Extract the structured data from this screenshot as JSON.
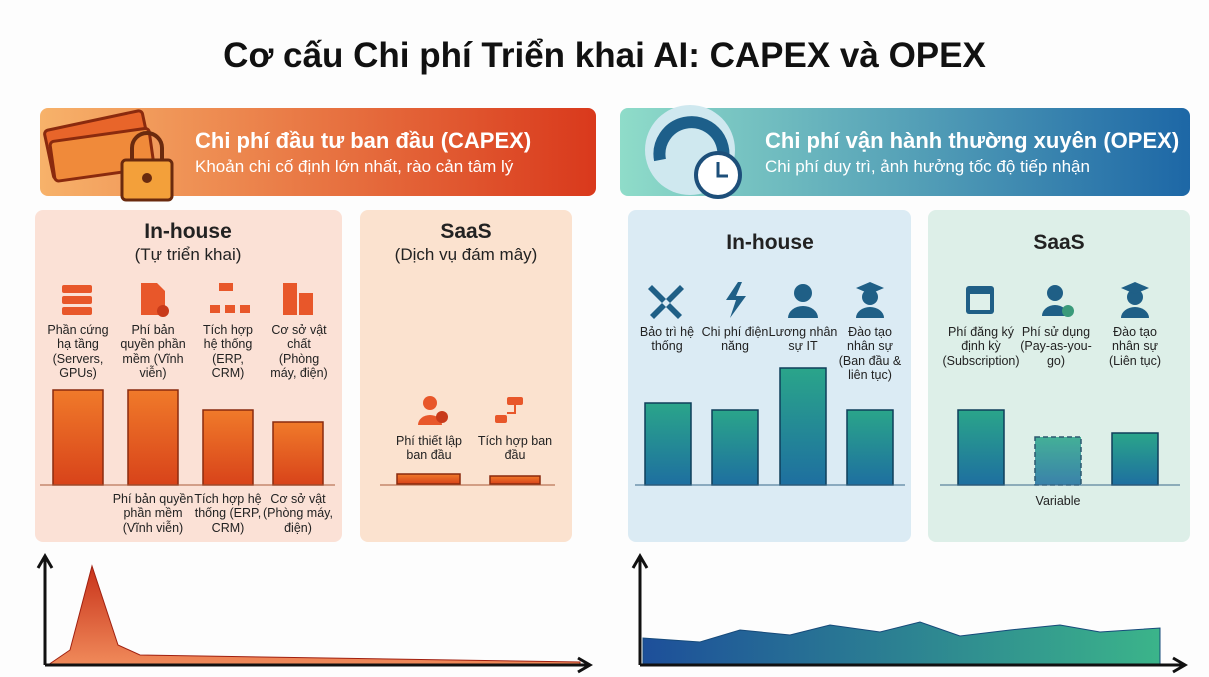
{
  "title": "Cơ cấu Chi phí Triển khai AI: CAPEX và OPEX",
  "capex": {
    "title": "Chi phí đầu tư ban đầu (CAPEX)",
    "subtitle": "Khoản chi cố định lớn nhất, rào cản tâm lý",
    "in_house": {
      "title": "In-house",
      "subtitle": "(Tự triển khai)",
      "items": [
        "Phần cứng hạ tầng (Servers, GPUs)",
        "Phí bản quyền phần mềm (Vĩnh viễn)",
        "Tích hợp hệ thống (ERP, CRM)",
        "Cơ sở vật chất (Phòng máy, điện)"
      ],
      "bar_labels": [
        "Phí bản quyền phần mềm (Vĩnh viễn)",
        "Tích hợp hệ thống (ERP, CRM)",
        "Cơ sở vật (Phòng máy, điện)"
      ]
    },
    "saas": {
      "title": "SaaS",
      "subtitle": "(Dịch vụ đám mây)",
      "items": [
        "Phí thiết lập ban đầu",
        "Tích hợp ban đầu"
      ]
    }
  },
  "opex": {
    "title": "Chi phí vận hành thường xuyên (OPEX)",
    "subtitle": "Chi phí duy trì, ảnh hưởng tốc độ tiếp nhận",
    "in_house": {
      "title": "In-house",
      "items": [
        "Bảo trì hệ thống",
        "Chi phí điện năng",
        "Lương nhân sự IT",
        "Đào tạo nhân sự (Ban đầu & liên tục)"
      ]
    },
    "saas": {
      "title": "SaaS",
      "items": [
        "Phí đăng ký định kỳ (Subscription)",
        "Phí sử dụng (Pay-as-you-go)",
        "Đào tạo nhân sự (Liên tục)"
      ],
      "note": "Variable"
    }
  }
}
